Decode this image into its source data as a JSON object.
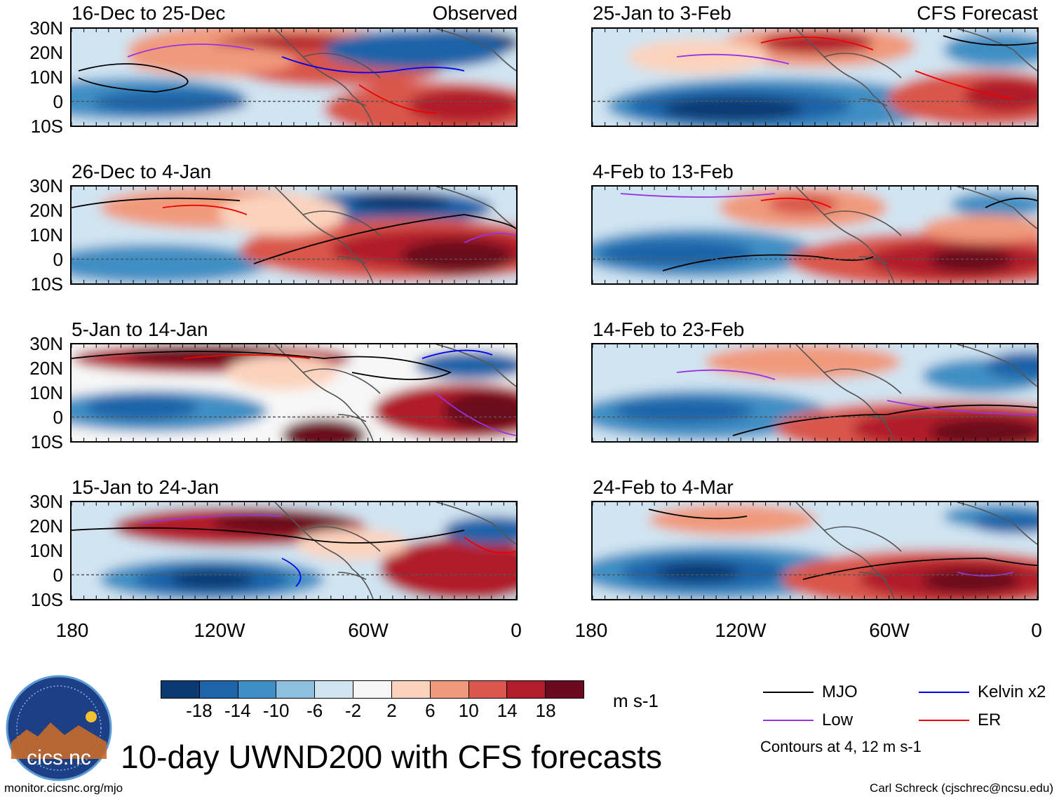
{
  "title": "10-day UWND200 with CFS forecasts",
  "left_column_source": "Observed",
  "right_column_source": "CFS Forecast",
  "panels": [
    {
      "id": "p1",
      "period": "16-Dec to 25-Dec",
      "type": "Observed"
    },
    {
      "id": "p2",
      "period": "26-Dec to 4-Jan",
      "type": "Observed"
    },
    {
      "id": "p3",
      "period": "5-Jan to 14-Jan",
      "type": "Observed"
    },
    {
      "id": "p4",
      "period": "15-Jan to 24-Jan",
      "type": "Observed"
    },
    {
      "id": "p5",
      "period": "25-Jan to 3-Feb",
      "type": "CFS Forecast"
    },
    {
      "id": "p6",
      "period": "4-Feb to 13-Feb",
      "type": "CFS Forecast"
    },
    {
      "id": "p7",
      "period": "14-Feb to 23-Feb",
      "type": "CFS Forecast"
    },
    {
      "id": "p8",
      "period": "24-Feb to 4-Mar",
      "type": "CFS Forecast"
    }
  ],
  "lat_labels": [
    "30N",
    "20N",
    "10N",
    "0",
    "10S"
  ],
  "lon_labels": [
    "180",
    "120W",
    "60W",
    "0"
  ],
  "colorbar": {
    "labels": [
      "-18",
      "-14",
      "-10",
      "-6",
      "-2",
      "2",
      "6",
      "10",
      "14",
      "18"
    ],
    "colors": [
      "#0b3a73",
      "#1f64a8",
      "#3f8fc4",
      "#8dbfdf",
      "#d0e4f1",
      "#f7f7f7",
      "#fbd3bd",
      "#f09a7c",
      "#d9574c",
      "#b11d2b",
      "#6b0a1e"
    ],
    "units": "m s-1"
  },
  "legend": {
    "items": [
      {
        "label": "MJO",
        "color": "#000000"
      },
      {
        "label": "Kelvin x2",
        "color": "#0000ee"
      },
      {
        "label": "Low",
        "color": "#9b30e6"
      },
      {
        "label": "ER",
        "color": "#ee0000"
      }
    ],
    "contours_note": "Contours at 4, 12 m s-1"
  },
  "logo_text": "cics.nc",
  "footer_left": "monitor.cicsnc.org/mjo",
  "footer_right": "Carl Schreck (cjschrec@ncsu.edu)"
}
